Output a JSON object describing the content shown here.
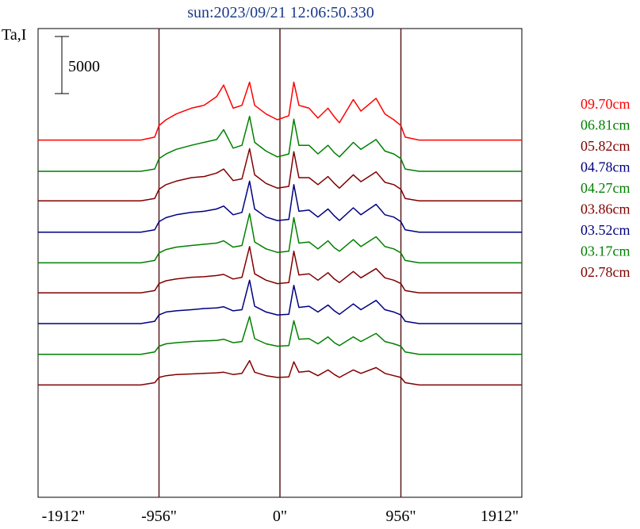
{
  "chart_data": {
    "type": "line",
    "title": "sun:2023/09/21 12:06:50.330",
    "ylabel": "Ta,I",
    "scale_bar_label": "5000",
    "scale_bar_value": 5000,
    "x_ticks": [
      {
        "value": -1912,
        "label": "-1912\""
      },
      {
        "value": -956,
        "label": "-956\""
      },
      {
        "value": 0,
        "label": "0\""
      },
      {
        "value": 956,
        "label": "956\""
      },
      {
        "value": 1912,
        "label": "1912\""
      }
    ],
    "xlim": [
      -1912,
      1912
    ],
    "vertical_lines": [
      -956,
      0,
      956
    ],
    "legend_position": "right",
    "series": [
      {
        "name": "09.70cm",
        "color": "#ff0000",
        "baseline": 6.17,
        "x": [
          -1912,
          -1100,
          -990,
          -956,
          -900,
          -820,
          -700,
          -600,
          -500,
          -445,
          -370,
          -300,
          -240,
          -200,
          -110,
          -20,
          70,
          110,
          150,
          230,
          300,
          380,
          430,
          470,
          580,
          640,
          760,
          830,
          900,
          956,
          990,
          1100,
          1912
        ],
        "y": [
          0,
          0,
          0.05,
          0.25,
          0.35,
          0.45,
          0.55,
          0.6,
          0.75,
          0.95,
          0.55,
          0.6,
          1.0,
          0.6,
          0.45,
          0.35,
          0.42,
          1.0,
          0.6,
          0.55,
          0.38,
          0.55,
          0.4,
          0.3,
          0.7,
          0.5,
          0.72,
          0.45,
          0.35,
          0.25,
          0.05,
          0,
          0
        ]
      },
      {
        "name": "06.81cm",
        "color": "#008000",
        "baseline": 5.63,
        "x": [
          -1912,
          -1100,
          -990,
          -956,
          -900,
          -820,
          -700,
          -600,
          -500,
          -445,
          -370,
          -300,
          -240,
          -200,
          -110,
          -20,
          70,
          110,
          150,
          230,
          300,
          380,
          430,
          470,
          580,
          640,
          760,
          830,
          900,
          956,
          990,
          1100,
          1912
        ],
        "y": [
          0,
          0,
          0.04,
          0.22,
          0.3,
          0.38,
          0.45,
          0.5,
          0.55,
          0.72,
          0.4,
          0.45,
          0.95,
          0.5,
          0.35,
          0.25,
          0.3,
          0.9,
          0.45,
          0.45,
          0.3,
          0.45,
          0.32,
          0.25,
          0.5,
          0.38,
          0.55,
          0.35,
          0.3,
          0.22,
          0.04,
          0,
          0
        ]
      },
      {
        "name": "05.82cm",
        "color": "#800000",
        "baseline": 5.12,
        "x": [
          -1912,
          -1100,
          -990,
          -956,
          -900,
          -820,
          -700,
          -600,
          -500,
          -445,
          -370,
          -300,
          -240,
          -200,
          -110,
          -20,
          70,
          110,
          150,
          230,
          300,
          380,
          430,
          470,
          580,
          640,
          760,
          830,
          900,
          956,
          990,
          1100,
          1912
        ],
        "y": [
          0,
          0,
          0.04,
          0.2,
          0.28,
          0.34,
          0.4,
          0.42,
          0.48,
          0.55,
          0.35,
          0.38,
          0.9,
          0.45,
          0.3,
          0.22,
          0.25,
          0.85,
          0.4,
          0.4,
          0.28,
          0.42,
          0.3,
          0.22,
          0.45,
          0.33,
          0.5,
          0.32,
          0.28,
          0.2,
          0.04,
          0,
          0
        ]
      },
      {
        "name": "04.78cm",
        "color": "#000080",
        "baseline": 4.58,
        "x": [
          -1912,
          -1100,
          -990,
          -956,
          -900,
          -820,
          -700,
          -600,
          -500,
          -445,
          -370,
          -300,
          -240,
          -200,
          -110,
          -20,
          70,
          110,
          150,
          230,
          300,
          380,
          430,
          470,
          580,
          640,
          760,
          830,
          900,
          956,
          990,
          1100,
          1912
        ],
        "y": [
          0,
          0,
          0.04,
          0.18,
          0.25,
          0.3,
          0.34,
          0.36,
          0.4,
          0.45,
          0.3,
          0.34,
          0.88,
          0.4,
          0.26,
          0.2,
          0.22,
          0.82,
          0.36,
          0.38,
          0.26,
          0.4,
          0.28,
          0.2,
          0.42,
          0.3,
          0.48,
          0.3,
          0.26,
          0.18,
          0.04,
          0,
          0
        ]
      },
      {
        "name": "04.27cm",
        "color": "#008000",
        "baseline": 4.05,
        "x": [
          -1912,
          -1100,
          -990,
          -956,
          -900,
          -820,
          -700,
          -600,
          -500,
          -445,
          -370,
          -300,
          -240,
          -200,
          -110,
          -20,
          70,
          110,
          150,
          230,
          300,
          380,
          430,
          470,
          580,
          640,
          760,
          830,
          900,
          956,
          990,
          1100,
          1912
        ],
        "y": [
          0,
          0,
          0.04,
          0.17,
          0.23,
          0.27,
          0.3,
          0.32,
          0.34,
          0.38,
          0.27,
          0.3,
          0.85,
          0.36,
          0.24,
          0.18,
          0.2,
          0.78,
          0.34,
          0.36,
          0.24,
          0.38,
          0.26,
          0.2,
          0.4,
          0.28,
          0.45,
          0.28,
          0.24,
          0.17,
          0.04,
          0,
          0
        ]
      },
      {
        "name": "03.86cm",
        "color": "#800000",
        "baseline": 3.53,
        "x": [
          -1912,
          -1100,
          -990,
          -956,
          -900,
          -820,
          -700,
          -600,
          -500,
          -445,
          -370,
          -300,
          -240,
          -200,
          -110,
          -20,
          70,
          110,
          150,
          230,
          300,
          380,
          430,
          470,
          580,
          640,
          760,
          830,
          900,
          956,
          990,
          1100,
          1912
        ],
        "y": [
          0,
          0,
          0.04,
          0.16,
          0.21,
          0.24,
          0.27,
          0.28,
          0.3,
          0.32,
          0.24,
          0.27,
          0.8,
          0.33,
          0.22,
          0.16,
          0.18,
          0.72,
          0.31,
          0.33,
          0.22,
          0.35,
          0.24,
          0.18,
          0.37,
          0.26,
          0.42,
          0.26,
          0.22,
          0.16,
          0.04,
          0,
          0
        ]
      },
      {
        "name": "03.52cm",
        "color": "#000080",
        "baseline": 3.0,
        "x": [
          -1912,
          -1100,
          -990,
          -956,
          -900,
          -820,
          -700,
          -600,
          -500,
          -445,
          -370,
          -300,
          -240,
          -200,
          -110,
          -20,
          70,
          110,
          150,
          230,
          300,
          380,
          430,
          470,
          580,
          640,
          760,
          830,
          900,
          956,
          990,
          1100,
          1912
        ],
        "y": [
          0,
          0,
          0.04,
          0.15,
          0.2,
          0.22,
          0.24,
          0.26,
          0.27,
          0.29,
          0.22,
          0.24,
          0.75,
          0.3,
          0.2,
          0.15,
          0.16,
          0.66,
          0.28,
          0.3,
          0.2,
          0.32,
          0.22,
          0.16,
          0.34,
          0.24,
          0.4,
          0.24,
          0.2,
          0.15,
          0.04,
          0,
          0
        ]
      },
      {
        "name": "03.17cm",
        "color": "#008000",
        "baseline": 2.47,
        "x": [
          -1912,
          -1100,
          -990,
          -956,
          -900,
          -820,
          -700,
          -600,
          -500,
          -445,
          -370,
          -300,
          -240,
          -200,
          -110,
          -20,
          70,
          110,
          150,
          230,
          300,
          380,
          430,
          470,
          580,
          640,
          760,
          830,
          900,
          956,
          990,
          1100,
          1912
        ],
        "y": [
          0,
          0,
          0.04,
          0.14,
          0.18,
          0.2,
          0.22,
          0.23,
          0.24,
          0.26,
          0.2,
          0.22,
          0.65,
          0.27,
          0.18,
          0.14,
          0.15,
          0.58,
          0.26,
          0.27,
          0.18,
          0.3,
          0.2,
          0.15,
          0.3,
          0.22,
          0.36,
          0.22,
          0.18,
          0.14,
          0.04,
          0,
          0
        ]
      },
      {
        "name": "02.78cm",
        "color": "#800000",
        "baseline": 1.94,
        "x": [
          -1912,
          -1100,
          -990,
          -956,
          -900,
          -820,
          -700,
          -600,
          -500,
          -445,
          -370,
          -300,
          -240,
          -200,
          -110,
          -20,
          70,
          110,
          150,
          230,
          300,
          380,
          430,
          470,
          580,
          640,
          760,
          830,
          900,
          956,
          990,
          1100,
          1912
        ],
        "y": [
          0,
          0,
          0.04,
          0.13,
          0.16,
          0.18,
          0.19,
          0.2,
          0.21,
          0.22,
          0.18,
          0.2,
          0.42,
          0.22,
          0.16,
          0.13,
          0.14,
          0.4,
          0.22,
          0.24,
          0.16,
          0.26,
          0.18,
          0.13,
          0.26,
          0.2,
          0.3,
          0.2,
          0.16,
          0.13,
          0.04,
          0,
          0
        ]
      }
    ]
  }
}
